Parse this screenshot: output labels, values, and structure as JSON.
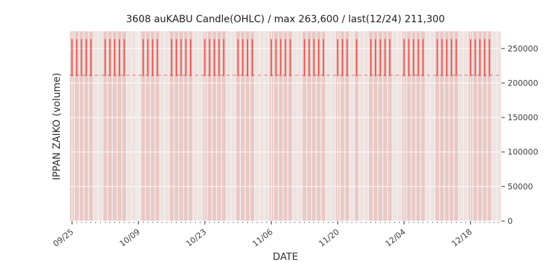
{
  "chart_data": {
    "type": "candlestick",
    "title": "3608 auKABU Candle(OHLC) / max 263,600 / last(12/24) 211,300",
    "xlabel": "DATE",
    "ylabel": "IPPAN ZAIKO (volume)",
    "start_date": "09/25",
    "end_date": "12/24",
    "num_days": 91,
    "ylim": [
      0,
      275000
    ],
    "yticks": [
      0,
      50000,
      100000,
      150000,
      200000,
      250000
    ],
    "xticks": [
      {
        "label": "09/25",
        "day": 0
      },
      {
        "label": "10/09",
        "day": 14
      },
      {
        "label": "10/23",
        "day": 28
      },
      {
        "label": "11/06",
        "day": 42
      },
      {
        "label": "11/20",
        "day": 56
      },
      {
        "label": "12/04",
        "day": 70
      },
      {
        "label": "12/18",
        "day": 84
      }
    ],
    "grid": true,
    "legend": false,
    "max_value": 263600,
    "last": {
      "date": "12/24",
      "value": 211300
    },
    "candle_low": 210000,
    "candle_high": 263600,
    "candles": [
      {
        "date": "09/25",
        "day": 0
      },
      {
        "date": "09/26",
        "day": 1
      },
      {
        "date": "09/27",
        "day": 2
      },
      {
        "date": "09/28",
        "day": 3
      },
      {
        "date": "09/29",
        "day": 4
      },
      {
        "date": "10/02",
        "day": 7
      },
      {
        "date": "10/03",
        "day": 8
      },
      {
        "date": "10/04",
        "day": 9
      },
      {
        "date": "10/05",
        "day": 10
      },
      {
        "date": "10/06",
        "day": 11
      },
      {
        "date": "10/10",
        "day": 15
      },
      {
        "date": "10/11",
        "day": 16
      },
      {
        "date": "10/12",
        "day": 17
      },
      {
        "date": "10/13",
        "day": 18
      },
      {
        "date": "10/16",
        "day": 21
      },
      {
        "date": "10/17",
        "day": 22
      },
      {
        "date": "10/18",
        "day": 23
      },
      {
        "date": "10/19",
        "day": 24
      },
      {
        "date": "10/20",
        "day": 25
      },
      {
        "date": "10/23",
        "day": 28
      },
      {
        "date": "10/24",
        "day": 29
      },
      {
        "date": "10/25",
        "day": 30
      },
      {
        "date": "10/26",
        "day": 31
      },
      {
        "date": "10/27",
        "day": 32
      },
      {
        "date": "10/30",
        "day": 35
      },
      {
        "date": "10/31",
        "day": 36
      },
      {
        "date": "11/01",
        "day": 37
      },
      {
        "date": "11/02",
        "day": 38
      },
      {
        "date": "11/06",
        "day": 42
      },
      {
        "date": "11/07",
        "day": 43
      },
      {
        "date": "11/08",
        "day": 44
      },
      {
        "date": "11/09",
        "day": 45
      },
      {
        "date": "11/10",
        "day": 46
      },
      {
        "date": "11/13",
        "day": 49
      },
      {
        "date": "11/14",
        "day": 50
      },
      {
        "date": "11/15",
        "day": 51
      },
      {
        "date": "11/16",
        "day": 52
      },
      {
        "date": "11/17",
        "day": 53
      },
      {
        "date": "11/20",
        "day": 56
      },
      {
        "date": "11/21",
        "day": 57
      },
      {
        "date": "11/22",
        "day": 58
      },
      {
        "date": "11/24",
        "day": 60
      },
      {
        "date": "11/27",
        "day": 63
      },
      {
        "date": "11/28",
        "day": 64
      },
      {
        "date": "11/29",
        "day": 65
      },
      {
        "date": "11/30",
        "day": 66
      },
      {
        "date": "12/01",
        "day": 67
      },
      {
        "date": "12/04",
        "day": 70
      },
      {
        "date": "12/05",
        "day": 71
      },
      {
        "date": "12/06",
        "day": 72
      },
      {
        "date": "12/07",
        "day": 73
      },
      {
        "date": "12/08",
        "day": 74
      },
      {
        "date": "12/11",
        "day": 77
      },
      {
        "date": "12/12",
        "day": 78
      },
      {
        "date": "12/13",
        "day": 79
      },
      {
        "date": "12/14",
        "day": 80
      },
      {
        "date": "12/15",
        "day": 81
      },
      {
        "date": "12/18",
        "day": 84
      },
      {
        "date": "12/19",
        "day": 85
      },
      {
        "date": "12/20",
        "day": 86
      },
      {
        "date": "12/21",
        "day": 87
      },
      {
        "date": "12/22",
        "day": 88
      }
    ],
    "colors": {
      "candle": "#e5352e",
      "last_line": "rgba(232,62,52,0.55)",
      "volume_bar": "rgba(213,62,54,0.16)",
      "volume_bar_faint": "rgba(213,62,54,0.07)",
      "plot_bg": "#f1f0ee",
      "grid": "#ffffff",
      "tick": "#3d3d3d"
    }
  }
}
